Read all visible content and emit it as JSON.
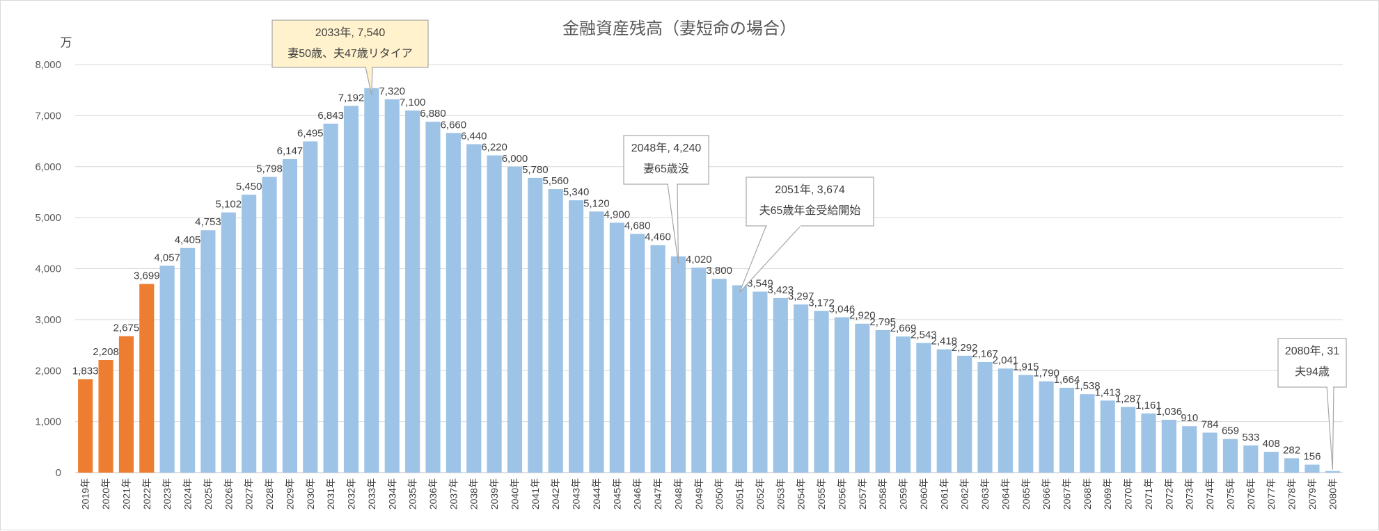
{
  "chart_data": {
    "type": "bar",
    "title": "金融資産残高（妻短命の場合）",
    "unit_label": "万",
    "xlabel": "",
    "ylabel": "万",
    "ylim": [
      0,
      8000
    ],
    "y_ticks": [
      "0",
      "1,000",
      "2,000",
      "3,000",
      "4,000",
      "5,000",
      "6,000",
      "7,000",
      "8,000"
    ],
    "grid": true,
    "legend": "none",
    "categories": [
      "2019年",
      "2020年",
      "2021年",
      "2022年",
      "2023年",
      "2024年",
      "2025年",
      "2026年",
      "2027年",
      "2028年",
      "2029年",
      "2030年",
      "2031年",
      "2032年",
      "2033年",
      "2034年",
      "2035年",
      "2036年",
      "2037年",
      "2038年",
      "2039年",
      "2040年",
      "2041年",
      "2042年",
      "2043年",
      "2044年",
      "2045年",
      "2046年",
      "2047年",
      "2048年",
      "2049年",
      "2050年",
      "2051年",
      "2052年",
      "2053年",
      "2054年",
      "2055年",
      "2056年",
      "2057年",
      "2058年",
      "2059年",
      "2060年",
      "2061年",
      "2062年",
      "2063年",
      "2064年",
      "2065年",
      "2066年",
      "2067年",
      "2068年",
      "2069年",
      "2070年",
      "2071年",
      "2072年",
      "2073年",
      "2074年",
      "2075年",
      "2076年",
      "2077年",
      "2078年",
      "2079年",
      "2080年"
    ],
    "values": [
      1833,
      2208,
      2675,
      3699,
      4057,
      4405,
      4753,
      5102,
      5450,
      5798,
      6147,
      6495,
      6843,
      7192,
      7540,
      7320,
      7100,
      6880,
      6660,
      6440,
      6220,
      6000,
      5780,
      5560,
      5340,
      5120,
      4900,
      4680,
      4460,
      4240,
      4020,
      3800,
      3674,
      3549,
      3423,
      3297,
      3172,
      3046,
      2920,
      2795,
      2669,
      2543,
      2418,
      2292,
      2167,
      2041,
      1915,
      1790,
      1664,
      1538,
      1413,
      1287,
      1161,
      1036,
      910,
      784,
      659,
      533,
      408,
      282,
      156,
      31
    ],
    "labels": [
      "1,833",
      "2,208",
      "2,675",
      "3,699",
      "4,057",
      "4,405",
      "4,753",
      "5,102",
      "5,450",
      "5,798",
      "6,147",
      "6,495",
      "6,843",
      "7,192",
      "",
      "7,320",
      "7,100",
      "6,880",
      "6,660",
      "6,440",
      "6,220",
      "6,000",
      "5,780",
      "5,560",
      "5,340",
      "5,120",
      "4,900",
      "4,680",
      "4,460",
      "",
      "4,020",
      "3,800",
      "",
      "3,549",
      "3,423",
      "3,297",
      "3,172",
      "3,046",
      "2,920",
      "2,795",
      "2,669",
      "2,543",
      "2,418",
      "2,292",
      "2,167",
      "2,041",
      "1,915",
      "1,790",
      "1,664",
      "1,538",
      "1,413",
      "1,287",
      "1,161",
      "1,036",
      "910",
      "784",
      "659",
      "533",
      "408",
      "282",
      "156",
      ""
    ],
    "actual_count": 4,
    "colors": {
      "actual": "#ed7d31",
      "projected": "#9dc3e6",
      "grid": "#d9d9d9",
      "axis": "#bfbfbf",
      "callout_border": "#a6a6a6",
      "callout_highlight_fill": "#fff2cc"
    },
    "annotations": [
      {
        "target": "2033年",
        "lines": [
          "2033年, 7,540",
          "妻50歳、夫47歳リタイア"
        ],
        "highlight": true
      },
      {
        "target": "2048年",
        "lines": [
          "2048年, 4,240",
          "妻65歳没"
        ],
        "highlight": false
      },
      {
        "target": "2051年",
        "lines": [
          "2051年, 3,674",
          "夫65歳年金受給開始"
        ],
        "highlight": false
      },
      {
        "target": "2080年",
        "lines": [
          "2080年, 31",
          "夫94歳"
        ],
        "highlight": false
      }
    ]
  }
}
